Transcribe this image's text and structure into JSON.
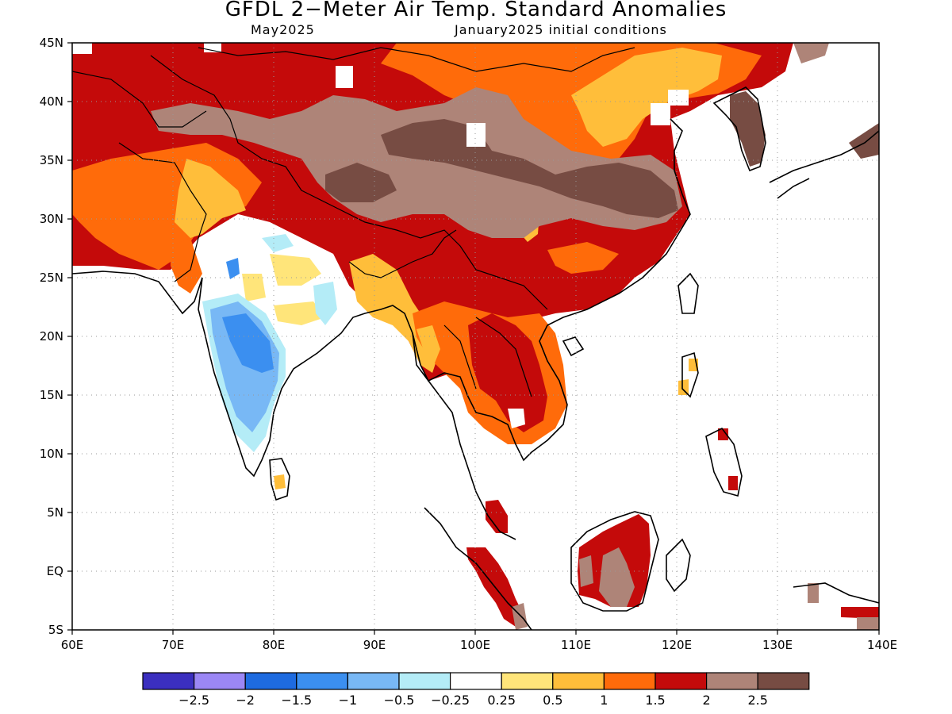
{
  "header": {
    "title": "GFDL 2−Meter Air Temp. Standard Anomalies",
    "target_month": "May2025",
    "init_conditions": "January2025 initial conditions"
  },
  "axes": {
    "lat_labels": [
      "45N",
      "40N",
      "35N",
      "30N",
      "25N",
      "20N",
      "15N",
      "10N",
      "5N",
      "EQ",
      "5S"
    ],
    "lon_labels": [
      "60E",
      "70E",
      "80E",
      "90E",
      "100E",
      "110E",
      "120E",
      "130E",
      "140E"
    ]
  },
  "colorbar": {
    "labels": [
      "−2.5",
      "−2",
      "−1.5",
      "−1",
      "−0.5",
      "−0.25",
      "0.25",
      "0.5",
      "1",
      "1.5",
      "2",
      "2.5"
    ],
    "colors": [
      "#3b2fbf",
      "#9b87f5",
      "#1e6be0",
      "#3b8ff0",
      "#78b8f5",
      "#b4ecf7",
      "#ffffff",
      "#ffe57a",
      "#ffbe3a",
      "#ff6b0a",
      "#c40a0a",
      "#ae8478",
      "#774c43"
    ]
  },
  "map_data": {
    "region": {
      "lon_min": 60,
      "lon_max": 140,
      "lat_min": -5,
      "lat_max": 45
    },
    "regions": [
      {
        "name": "Northwest (Central Asia / Iran)",
        "anomaly_class": "2"
      },
      {
        "name": "Tibetan Plateau / Central China",
        "anomaly_class": ">2.5"
      },
      {
        "name": "Central India",
        "anomaly_class": "-0.5 to -2"
      },
      {
        "name": "Indochina",
        "anomaly_class": "1.5 to 2"
      },
      {
        "name": "Borneo",
        "anomaly_class": "2 to 2.5"
      }
    ]
  }
}
